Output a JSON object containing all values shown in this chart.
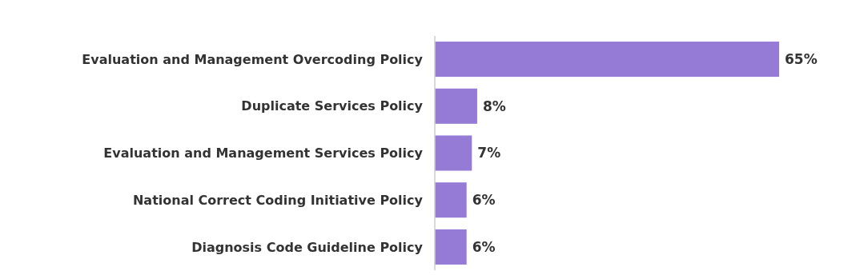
{
  "chart_data": {
    "type": "bar",
    "orientation": "horizontal",
    "categories": [
      "Evaluation and Management Overcoding Policy",
      "Duplicate Services Policy",
      "Evaluation and Management Services Policy",
      "National Correct Coding Initiative Policy",
      "Diagnosis Code Guideline Policy"
    ],
    "values": [
      65,
      8,
      7,
      6,
      6
    ],
    "value_labels": [
      "65%",
      "8%",
      "7%",
      "6%",
      "6%"
    ],
    "color": "#967bd6"
  }
}
